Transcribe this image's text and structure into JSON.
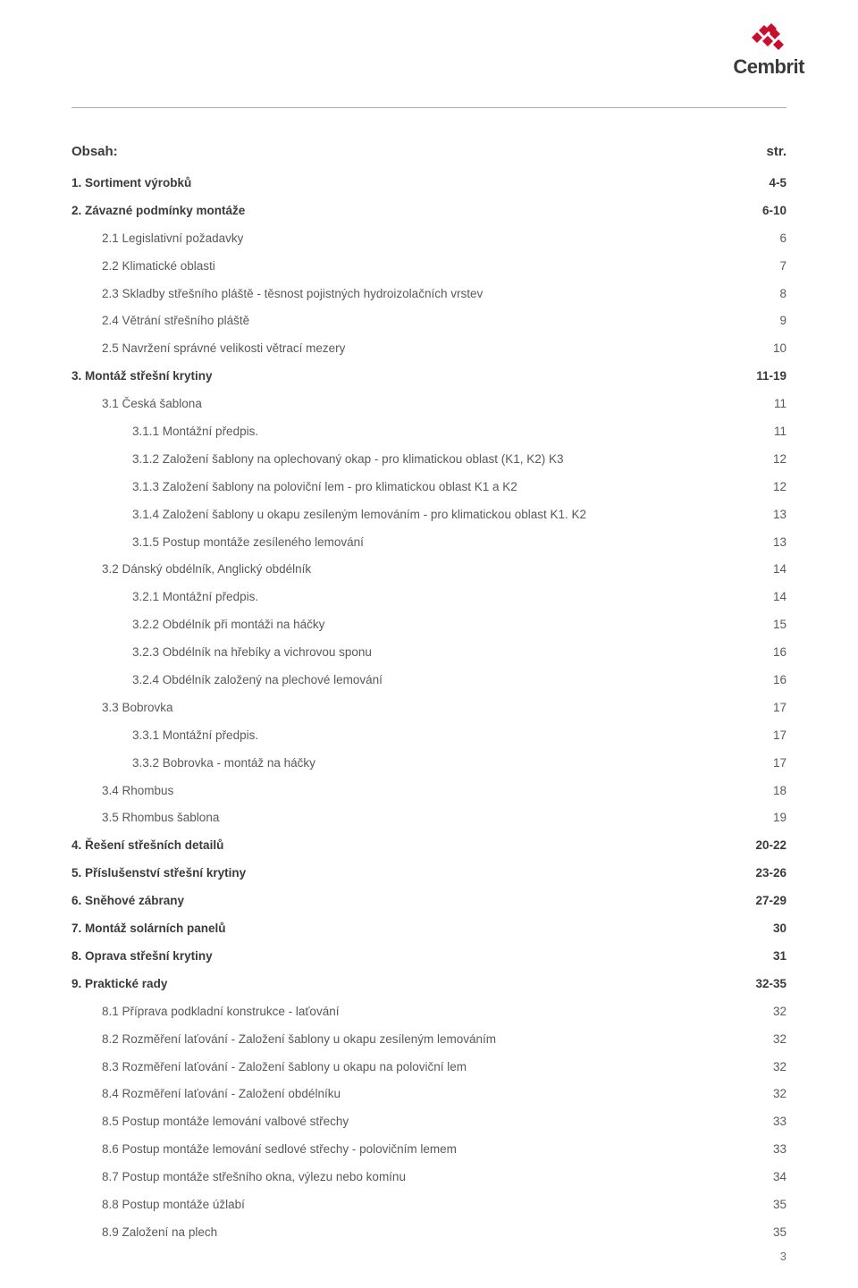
{
  "logo": {
    "brand": "Cembrit",
    "colors": {
      "red": "#c8102e",
      "dark": "#3a3a3c"
    }
  },
  "title": "Obsah:",
  "page_col_header": "str.",
  "page_number": "3",
  "colors": {
    "text": "#58595b",
    "bold": "#3a3a3c",
    "line": "#a7a9ac",
    "background": "#ffffff"
  },
  "typography": {
    "body_fontsize_pt": 10,
    "title_fontsize_pt": 11,
    "font_family": "sans-serif"
  },
  "toc": [
    {
      "level": 0,
      "bold": true,
      "label": "1. Sortiment výrobků",
      "page": "4-5"
    },
    {
      "level": 0,
      "bold": true,
      "label": "2. Závazné podmínky montáže",
      "page": "6-10"
    },
    {
      "level": 1,
      "bold": false,
      "label": "2.1 Legislativní požadavky",
      "page": "6"
    },
    {
      "level": 1,
      "bold": false,
      "label": "2.2 Klimatické oblasti",
      "page": "7"
    },
    {
      "level": 1,
      "bold": false,
      "label": "2.3 Skladby střešního pláště - těsnost pojistných hydroizolačních vrstev",
      "page": "8"
    },
    {
      "level": 1,
      "bold": false,
      "label": "2.4 Větrání střešního pláště",
      "page": "9"
    },
    {
      "level": 1,
      "bold": false,
      "label": "2.5 Navržení správné velikosti větrací mezery",
      "page": "10"
    },
    {
      "level": 0,
      "bold": true,
      "label": "3. Montáž střešní krytiny",
      "page": "11-19"
    },
    {
      "level": 1,
      "bold": false,
      "label": "3.1 Česká šablona",
      "page": "11"
    },
    {
      "level": 2,
      "bold": false,
      "label": "3.1.1 Montážní předpis.",
      "page": "11"
    },
    {
      "level": 2,
      "bold": false,
      "label": "3.1.2 Založení šablony na oplechovaný okap - pro klimatickou oblast (K1, K2) K3",
      "page": "12"
    },
    {
      "level": 2,
      "bold": false,
      "label": "3.1.3 Založení šablony na poloviční lem - pro klimatickou oblast K1 a K2",
      "page": "12"
    },
    {
      "level": 2,
      "bold": false,
      "label": "3.1.4 Založení šablony u okapu zesíleným lemováním - pro klimatickou oblast K1. K2",
      "page": "13"
    },
    {
      "level": 2,
      "bold": false,
      "label": "3.1.5 Postup montáže zesíleného lemování",
      "page": "13"
    },
    {
      "level": 1,
      "bold": false,
      "label": "3.2 Dánský obdélník, Anglický obdélník",
      "page": "14"
    },
    {
      "level": 2,
      "bold": false,
      "label": "3.2.1 Montážní předpis.",
      "page": "14"
    },
    {
      "level": 2,
      "bold": false,
      "label": "3.2.2 Obdélník při montáži na háčky",
      "page": "15"
    },
    {
      "level": 2,
      "bold": false,
      "label": "3.2.3 Obdélník na hřebíky a vichrovou sponu",
      "page": "16"
    },
    {
      "level": 2,
      "bold": false,
      "label": "3.2.4 Obdélník založený na plechové lemování",
      "page": "16"
    },
    {
      "level": 1,
      "bold": false,
      "label": "3.3 Bobrovka",
      "page": "17"
    },
    {
      "level": 2,
      "bold": false,
      "label": "3.3.1 Montážní předpis.",
      "page": "17"
    },
    {
      "level": 2,
      "bold": false,
      "label": "3.3.2 Bobrovka - montáž na háčky",
      "page": "17"
    },
    {
      "level": 1,
      "bold": false,
      "label": "3.4 Rhombus",
      "page": "18"
    },
    {
      "level": 1,
      "bold": false,
      "label": "3.5 Rhombus šablona",
      "page": "19"
    },
    {
      "level": 0,
      "bold": true,
      "label": "4. Řešení střešních detailů",
      "page": "20-22"
    },
    {
      "level": 0,
      "bold": true,
      "label": "5. Příslušenství střešní krytiny",
      "page": "23-26"
    },
    {
      "level": 0,
      "bold": true,
      "label": "6. Sněhové zábrany",
      "page": "27-29"
    },
    {
      "level": 0,
      "bold": true,
      "label": "7. Montáž solárních panelů",
      "page": "30"
    },
    {
      "level": 0,
      "bold": true,
      "label": "8. Oprava střešní krytiny",
      "page": "31"
    },
    {
      "level": 0,
      "bold": true,
      "label": "9. Praktické rady",
      "page": "32-35"
    },
    {
      "level": 1,
      "bold": false,
      "label": "8.1 Příprava podkladní konstrukce - laťování",
      "page": "32"
    },
    {
      "level": 1,
      "bold": false,
      "label": "8.2 Rozměření laťování - Založení šablony u okapu zesíleným lemováním",
      "page": "32"
    },
    {
      "level": 1,
      "bold": false,
      "label": "8.3 Rozměření laťování - Založení šablony u okapu na poloviční lem",
      "page": "32"
    },
    {
      "level": 1,
      "bold": false,
      "label": "8.4 Rozměření laťování - Založení obdélníku",
      "page": "32"
    },
    {
      "level": 1,
      "bold": false,
      "label": "8.5 Postup montáže lemování valbové střechy",
      "page": "33"
    },
    {
      "level": 1,
      "bold": false,
      "label": "8.6 Postup montáže lemování sedlové střechy - polovičním lemem",
      "page": "33"
    },
    {
      "level": 1,
      "bold": false,
      "label": "8.7 Postup montáže střešního okna, výlezu nebo komínu",
      "page": "34"
    },
    {
      "level": 1,
      "bold": false,
      "label": "8.8 Postup montáže úžlabí",
      "page": "35"
    },
    {
      "level": 1,
      "bold": false,
      "label": "8.9 Založení na plech",
      "page": "35"
    }
  ]
}
